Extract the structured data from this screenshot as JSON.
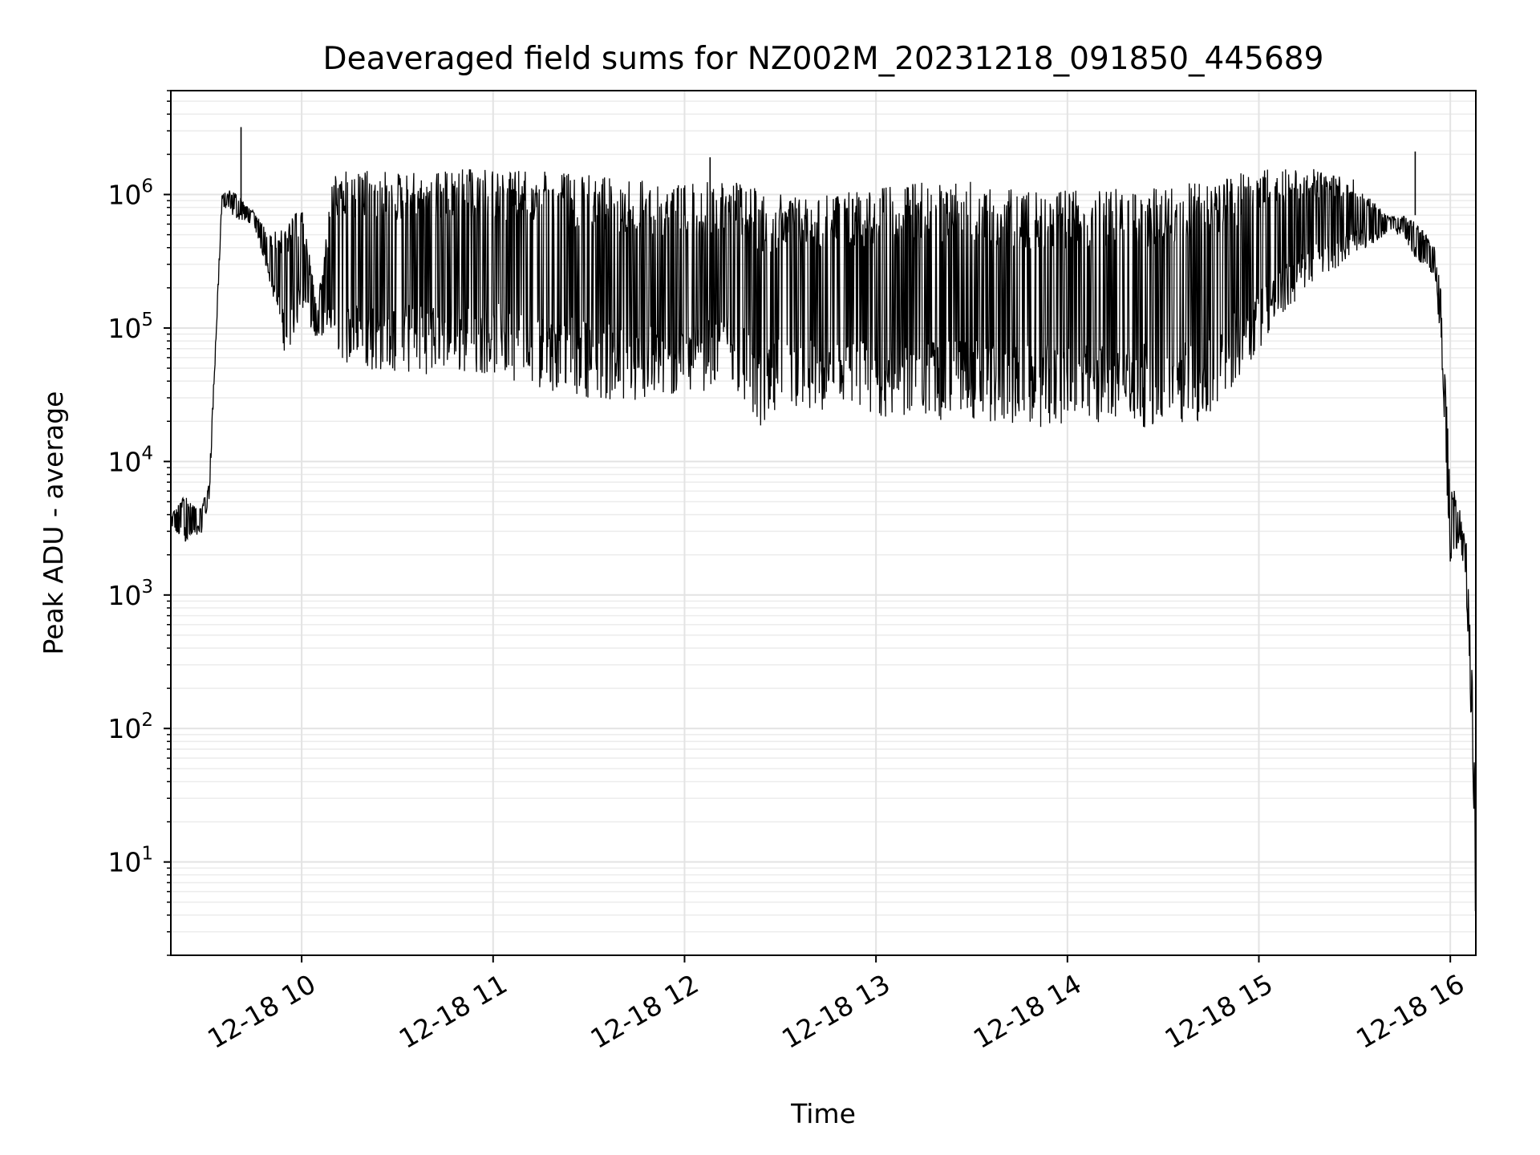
{
  "chart_data": {
    "type": "line",
    "title": "Deaveraged field sums for NZ002M_20231218_091850_445689",
    "xlabel": "Time",
    "ylabel": "Peak ADU - average",
    "yscale": "log",
    "grid": true,
    "xlim": [
      "2023-12-18 09:19:00",
      "2023-12-18 16:08:00"
    ],
    "ylim": [
      2,
      6000000
    ],
    "x_ticks": [
      {
        "x": "2023-12-18 10:00:00",
        "label": "12-18 10"
      },
      {
        "x": "2023-12-18 11:00:00",
        "label": "12-18 11"
      },
      {
        "x": "2023-12-18 12:00:00",
        "label": "12-18 12"
      },
      {
        "x": "2023-12-18 13:00:00",
        "label": "12-18 13"
      },
      {
        "x": "2023-12-18 14:00:00",
        "label": "12-18 14"
      },
      {
        "x": "2023-12-18 15:00:00",
        "label": "12-18 15"
      },
      {
        "x": "2023-12-18 16:00:00",
        "label": "12-18 16"
      }
    ],
    "y_ticks": [
      {
        "value": 10,
        "base": "10",
        "exp": "1"
      },
      {
        "value": 100,
        "base": "10",
        "exp": "2"
      },
      {
        "value": 1000,
        "base": "10",
        "exp": "3"
      },
      {
        "value": 10000,
        "base": "10",
        "exp": "4"
      },
      {
        "value": 100000,
        "base": "10",
        "exp": "5"
      },
      {
        "value": 1000000,
        "base": "10",
        "exp": "6"
      }
    ],
    "series": [
      {
        "color": "#000000",
        "envelope": {
          "description_in_units": "sampled upper and lower envelope of a dense oscillating line",
          "times": [
            "2023-12-18 09:19:00",
            "2023-12-18 09:23:00",
            "2023-12-18 09:26:00",
            "2023-12-18 09:29:00",
            "2023-12-18 09:31:00",
            "2023-12-18 09:35:00",
            "2023-12-18 09:38:00",
            "2023-12-18 09:40:00",
            "2023-12-18 09:45:00",
            "2023-12-18 09:50:00",
            "2023-12-18 09:55:00",
            "2023-12-18 10:00:00",
            "2023-12-18 10:05:00",
            "2023-12-18 10:10:00",
            "2023-12-18 10:15:00",
            "2023-12-18 10:30:00",
            "2023-12-18 10:45:00",
            "2023-12-18 11:00:00",
            "2023-12-18 11:15:00",
            "2023-12-18 11:30:00",
            "2023-12-18 11:45:00",
            "2023-12-18 12:00:00",
            "2023-12-18 12:15:00",
            "2023-12-18 12:25:00",
            "2023-12-18 12:30:00",
            "2023-12-18 12:45:00",
            "2023-12-18 13:00:00",
            "2023-12-18 13:15:00",
            "2023-12-18 13:30:00",
            "2023-12-18 13:45:00",
            "2023-12-18 14:00:00",
            "2023-12-18 14:15:00",
            "2023-12-18 14:30:00",
            "2023-12-18 14:45:00",
            "2023-12-18 15:00:00",
            "2023-12-18 15:15:00",
            "2023-12-18 15:30:00",
            "2023-12-18 15:40:00",
            "2023-12-18 15:45:00",
            "2023-12-18 15:50:00",
            "2023-12-18 15:55:00",
            "2023-12-18 15:57:00",
            "2023-12-18 16:00:00",
            "2023-12-18 16:03:00",
            "2023-12-18 16:05:00",
            "2023-12-18 16:07:00",
            "2023-12-18 16:08:00"
          ],
          "upper": [
            4000,
            5500,
            5000,
            5000,
            7000,
            1000000,
            1100000,
            1000000,
            750000,
            500000,
            600000,
            800000,
            150000,
            1500000,
            1500000,
            1500000,
            1550000,
            1550000,
            1500000,
            1400000,
            1300000,
            1200000,
            1300000,
            1050000,
            1000000,
            1000000,
            1100000,
            1250000,
            1250000,
            1100000,
            1100000,
            1100000,
            1150000,
            1300000,
            1550000,
            1600000,
            1300000,
            700000,
            700000,
            600000,
            420000,
            200000,
            8000,
            4500,
            2500,
            200,
            50
          ],
          "lower": [
            3000,
            2500,
            2500,
            3000,
            5000,
            800000,
            700000,
            650000,
            600000,
            220000,
            60000,
            120000,
            80000,
            70000,
            50000,
            45000,
            45000,
            45000,
            35000,
            30000,
            25000,
            30000,
            40000,
            14000,
            25000,
            20000,
            20000,
            20000,
            20000,
            18000,
            18000,
            18000,
            18000,
            20000,
            70000,
            200000,
            350000,
            500000,
            500000,
            300000,
            250000,
            80000,
            1500,
            2500,
            1000,
            50,
            2
          ]
        },
        "spikes": [
          {
            "x": "2023-12-18 09:41:00",
            "y": 3200000
          },
          {
            "x": "2023-12-18 12:08:00",
            "y": 1900000
          },
          {
            "x": "2023-12-18 15:49:00",
            "y": 2100000
          }
        ]
      }
    ]
  }
}
